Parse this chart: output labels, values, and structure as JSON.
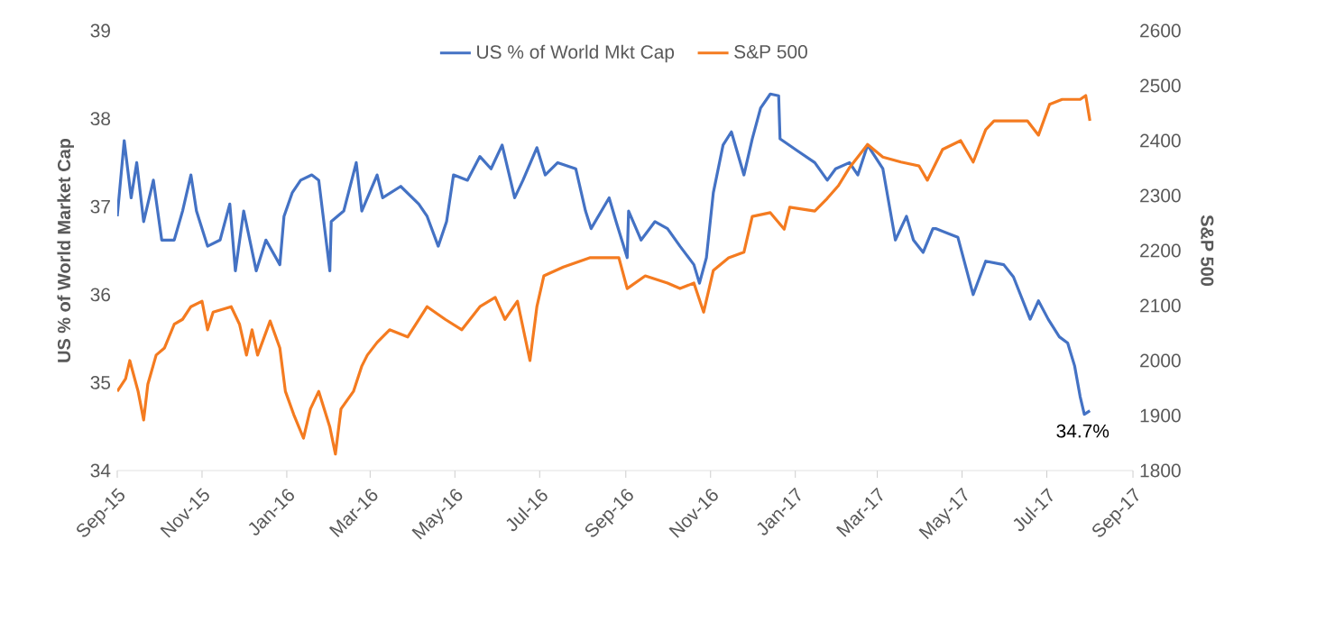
{
  "chart_data": {
    "type": "line",
    "ylabel": "US % of World Market Cap",
    "y2label": "S&P 500",
    "xlim": [
      "2015-09-01",
      "2017-09-01"
    ],
    "xticks": [
      {
        "value": "2015-09-01",
        "label": "Sep-15"
      },
      {
        "value": "2015-11-01",
        "label": "Nov-15"
      },
      {
        "value": "2016-01-01",
        "label": "Jan-16"
      },
      {
        "value": "2016-03-01",
        "label": "Mar-16"
      },
      {
        "value": "2016-05-01",
        "label": "May-16"
      },
      {
        "value": "2016-07-01",
        "label": "Jul-16"
      },
      {
        "value": "2016-09-01",
        "label": "Sep-16"
      },
      {
        "value": "2016-11-01",
        "label": "Nov-16"
      },
      {
        "value": "2017-01-01",
        "label": "Jan-17"
      },
      {
        "value": "2017-03-01",
        "label": "Mar-17"
      },
      {
        "value": "2017-05-01",
        "label": "May-17"
      },
      {
        "value": "2017-07-01",
        "label": "Jul-17"
      },
      {
        "value": "2017-09-01",
        "label": "Sep-17"
      }
    ],
    "ylim": [
      34,
      39
    ],
    "yticks": [
      34,
      35,
      36,
      37,
      38,
      39
    ],
    "y2lim": [
      1800,
      2600
    ],
    "y2ticks": [
      1800,
      1900,
      2000,
      2100,
      2200,
      2300,
      2400,
      2500,
      2600
    ],
    "legend": "top",
    "annotations": [
      {
        "text": "34.7%",
        "x": "2017-08-01",
        "y": 34.7
      }
    ],
    "series": [
      {
        "name": "US % of World Mkt Cap",
        "color": "#4472c4",
        "x": [
          "2015-09-01",
          "2015-09-06",
          "2015-09-11",
          "2015-09-15",
          "2015-09-20",
          "2015-09-27",
          "2015-10-03",
          "2015-10-12",
          "2015-10-18",
          "2015-10-24",
          "2015-10-28",
          "2015-11-05",
          "2015-11-14",
          "2015-11-21",
          "2015-11-25",
          "2015-12-01",
          "2015-12-10",
          "2015-12-17",
          "2015-12-27",
          "2015-12-30",
          "2016-01-05",
          "2016-01-11",
          "2016-01-19",
          "2016-01-24",
          "2016-02-01",
          "2016-02-02",
          "2016-02-11",
          "2016-02-20",
          "2016-02-24",
          "2016-03-06",
          "2016-03-10",
          "2016-03-23",
          "2016-04-05",
          "2016-04-11",
          "2016-04-19",
          "2016-04-25",
          "2016-04-30",
          "2016-05-10",
          "2016-05-19",
          "2016-05-27",
          "2016-06-04",
          "2016-06-13",
          "2016-06-19",
          "2016-06-29",
          "2016-07-05",
          "2016-07-14",
          "2016-07-27",
          "2016-08-03",
          "2016-08-07",
          "2016-08-20",
          "2016-08-25",
          "2016-09-02",
          "2016-09-03",
          "2016-09-12",
          "2016-09-22",
          "2016-10-01",
          "2016-10-10",
          "2016-10-20",
          "2016-10-24",
          "2016-10-29",
          "2016-11-03",
          "2016-11-10",
          "2016-11-16",
          "2016-11-25",
          "2016-12-01",
          "2016-12-07",
          "2016-12-14",
          "2016-12-20",
          "2016-12-21",
          "2017-01-02",
          "2017-01-15",
          "2017-01-24",
          "2017-01-30",
          "2017-02-09",
          "2017-02-15",
          "2017-02-22",
          "2017-03-05",
          "2017-03-14",
          "2017-03-22",
          "2017-03-27",
          "2017-04-03",
          "2017-04-10",
          "2017-04-12",
          "2017-04-28",
          "2017-05-09",
          "2017-05-18",
          "2017-05-31",
          "2017-06-07",
          "2017-06-19",
          "2017-06-25",
          "2017-07-02",
          "2017-07-10",
          "2017-07-16",
          "2017-07-21",
          "2017-07-25",
          "2017-07-28",
          "2017-08-01"
        ],
        "values": [
          36.89,
          37.75,
          37.1,
          37.5,
          36.83,
          37.3,
          36.62,
          36.62,
          36.95,
          37.36,
          36.95,
          36.55,
          36.62,
          37.03,
          36.27,
          36.95,
          36.27,
          36.62,
          36.34,
          36.89,
          37.16,
          37.3,
          37.36,
          37.3,
          36.27,
          36.83,
          36.95,
          37.5,
          36.95,
          37.36,
          37.1,
          37.23,
          37.03,
          36.89,
          36.55,
          36.83,
          37.36,
          37.3,
          37.57,
          37.43,
          37.7,
          37.1,
          37.3,
          37.67,
          37.36,
          37.5,
          37.43,
          36.95,
          36.75,
          37.1,
          36.83,
          36.42,
          36.95,
          36.62,
          36.83,
          36.75,
          36.55,
          36.34,
          36.13,
          36.42,
          37.16,
          37.7,
          37.85,
          37.36,
          37.77,
          38.12,
          38.28,
          38.26,
          37.77,
          37.64,
          37.5,
          37.3,
          37.43,
          37.5,
          37.36,
          37.7,
          37.43,
          36.62,
          36.89,
          36.62,
          36.48,
          36.75,
          36.75,
          36.65,
          36.0,
          36.38,
          36.34,
          36.2,
          35.72,
          35.93,
          35.72,
          35.52,
          35.45,
          35.19,
          34.84,
          34.64,
          34.68
        ]
      },
      {
        "name": "S&P 500",
        "color": "#f47b20",
        "axis": "y2",
        "x": [
          "2015-09-01",
          "2015-09-07",
          "2015-09-10",
          "2015-09-16",
          "2015-09-20",
          "2015-09-23",
          "2015-09-29",
          "2015-10-05",
          "2015-10-12",
          "2015-10-18",
          "2015-10-24",
          "2015-11-01",
          "2015-11-05",
          "2015-11-09",
          "2015-11-22",
          "2015-11-28",
          "2015-12-03",
          "2015-12-07",
          "2015-12-11",
          "2015-12-20",
          "2015-12-27",
          "2015-12-31",
          "2016-01-06",
          "2016-01-13",
          "2016-01-18",
          "2016-01-24",
          "2016-02-01",
          "2016-02-05",
          "2016-02-09",
          "2016-02-18",
          "2016-02-24",
          "2016-02-28",
          "2016-03-06",
          "2016-03-15",
          "2016-03-28",
          "2016-04-11",
          "2016-04-24",
          "2016-05-06",
          "2016-05-19",
          "2016-05-30",
          "2016-06-06",
          "2016-06-15",
          "2016-06-24",
          "2016-06-29",
          "2016-07-04",
          "2016-07-18",
          "2016-08-06",
          "2016-08-27",
          "2016-09-02",
          "2016-09-15",
          "2016-10-01",
          "2016-10-10",
          "2016-10-20",
          "2016-10-27",
          "2016-11-03",
          "2016-11-14",
          "2016-11-25",
          "2016-12-01",
          "2016-12-14",
          "2016-12-24",
          "2016-12-28",
          "2017-01-15",
          "2017-01-24",
          "2017-02-01",
          "2017-02-09",
          "2017-02-22",
          "2017-03-05",
          "2017-03-18",
          "2017-03-31",
          "2017-04-06",
          "2017-04-17",
          "2017-04-30",
          "2017-05-09",
          "2017-05-18",
          "2017-05-24",
          "2017-06-07",
          "2017-06-17",
          "2017-06-25",
          "2017-07-03",
          "2017-07-12",
          "2017-07-25",
          "2017-07-29",
          "2017-08-01"
        ],
        "values": [
          1944,
          1967,
          2000,
          1944,
          1892,
          1957,
          2010,
          2023,
          2066,
          2075,
          2098,
          2108,
          2056,
          2088,
          2098,
          2066,
          2010,
          2056,
          2010,
          2072,
          2023,
          1944,
          1902,
          1859,
          1912,
          1944,
          1879,
          1830,
          1912,
          1944,
          1990,
          2010,
          2033,
          2056,
          2043,
          2098,
          2075,
          2056,
          2098,
          2115,
          2075,
          2108,
          2000,
          2098,
          2154,
          2170,
          2187,
          2187,
          2131,
          2154,
          2141,
          2131,
          2141,
          2088,
          2164,
          2187,
          2197,
          2262,
          2269,
          2239,
          2279,
          2272,
          2295,
          2318,
          2351,
          2393,
          2370,
          2361,
          2354,
          2328,
          2384,
          2400,
          2361,
          2420,
          2436,
          2436,
          2436,
          2410,
          2466,
          2475,
          2475,
          2482,
          2436
        ]
      }
    ]
  }
}
